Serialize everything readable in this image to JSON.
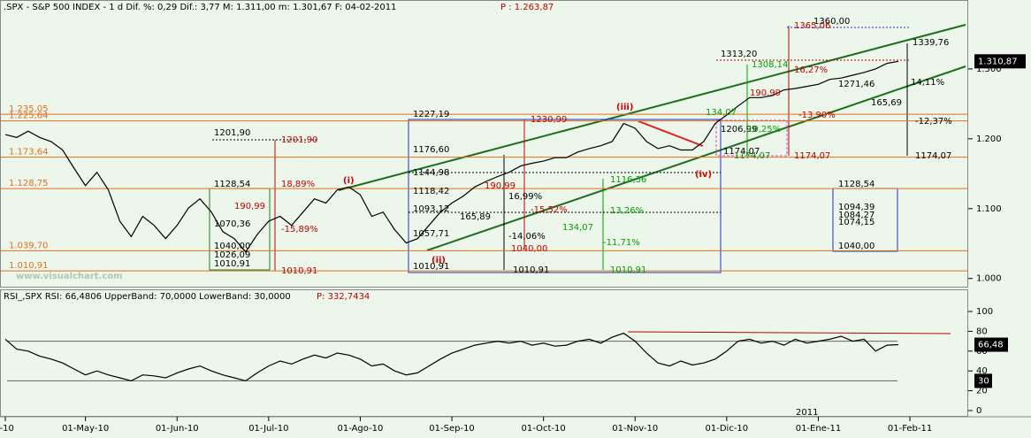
{
  "chart_data": [
    {
      "type": "line",
      "title": ".SPX - S&P 500 INDEX - 1 d Dif. %: 0,29 Dif.: 3,77 M: 1.311,00 m: 1.301,67 F: 04-02-2011",
      "title_extra": "P : 1.263,87",
      "watermark": "www.visualchart.com",
      "year_label": "2011",
      "last_label": "1.310,87",
      "categories": [
        "r-10",
        null,
        null,
        null,
        null,
        null,
        null,
        "01-May-10",
        null,
        null,
        null,
        null,
        null,
        null,
        null,
        "01-Jun-10",
        null,
        null,
        null,
        null,
        null,
        null,
        null,
        "01-Jul-10",
        null,
        null,
        null,
        null,
        null,
        null,
        null,
        "01-Ago-10",
        null,
        null,
        null,
        null,
        null,
        null,
        null,
        "01-Sep-10",
        null,
        null,
        null,
        null,
        null,
        null,
        null,
        "01-Oct-10",
        null,
        null,
        null,
        null,
        null,
        null,
        null,
        "01-Nov-10",
        null,
        null,
        null,
        null,
        null,
        null,
        null,
        "01-Dic-10",
        null,
        null,
        null,
        null,
        null,
        null,
        null,
        "01-Ene-11",
        null,
        null,
        null,
        null,
        null,
        null,
        null,
        "01-Feb-11"
      ],
      "series": [
        {
          "name": "SPX",
          "color": "#000000",
          "values": [
            1206,
            1202,
            1211,
            1202,
            1196,
            1184,
            1158,
            1133,
            1152,
            1127,
            1082,
            1060,
            1089,
            1076,
            1057,
            1076,
            1101,
            1114,
            1095,
            1067,
            1057,
            1038,
            1063,
            1082,
            1089,
            1076,
            1095,
            1114,
            1108,
            1127,
            1131,
            1120,
            1089,
            1095,
            1070,
            1051,
            1057,
            1076,
            1095,
            1108,
            1118,
            1131,
            1139,
            1146,
            1152,
            1161,
            1165,
            1168,
            1173,
            1173,
            1181,
            1186,
            1190,
            1196,
            1222,
            1215,
            1196,
            1186,
            1190,
            1184,
            1184,
            1196,
            1222,
            1234,
            1247,
            1259,
            1259,
            1262,
            1270,
            1272,
            1275,
            1278,
            1285,
            1287,
            1291,
            1295,
            1300,
            1308,
            1310.87,
            null
          ]
        }
      ],
      "ylim": [
        987,
        1386
      ],
      "yticks": [
        {
          "value": 1000,
          "label": "1.000"
        },
        {
          "value": 1100,
          "label": "1.100"
        },
        {
          "value": 1200,
          "label": "1.200"
        },
        {
          "value": 1300,
          "label": "1.300"
        }
      ],
      "levels": [
        {
          "value": 1235.05,
          "label": "1.235,05"
        },
        {
          "value": 1225.64,
          "label": "1.225,64"
        },
        {
          "value": 1173.64,
          "label": "1.173,64"
        },
        {
          "value": 1128.75,
          "label": "1.128,75"
        },
        {
          "value": 1039.7,
          "label": "1.039,70"
        },
        {
          "value": 1010.91,
          "label": "1.010,91"
        }
      ],
      "level_color": "#e07020",
      "annotations": [
        {
          "text": "1227,19",
          "color": "#000000"
        },
        {
          "text": "1201,90",
          "color": "#000000"
        },
        {
          "text": "1176,60",
          "color": "#000000"
        },
        {
          "text": "1144,98",
          "color": "#000000"
        },
        {
          "text": "1128,54",
          "color": "#000000"
        },
        {
          "text": "1118,42",
          "color": "#000000"
        },
        {
          "text": "1093,12",
          "color": "#000000"
        },
        {
          "text": "1070,36",
          "color": "#000000"
        },
        {
          "text": "1057,71",
          "color": "#000000"
        },
        {
          "text": "1040,00",
          "color": "#000000"
        },
        {
          "text": "1026,09",
          "color": "#000000"
        },
        {
          "text": "1010,91",
          "color": "#000000"
        },
        {
          "text": "1010,91",
          "color": "#000000"
        },
        {
          "text": "1010,91",
          "color": "#000000"
        },
        {
          "text": "165,89",
          "color": "#000000"
        },
        {
          "text": "-14,06%",
          "color": "#000000"
        },
        {
          "text": "1313,20",
          "color": "#000000"
        },
        {
          "text": "1360,00",
          "color": "#000000"
        },
        {
          "text": "1339,76",
          "color": "#000000"
        },
        {
          "text": "1271,46",
          "color": "#000000"
        },
        {
          "text": "165,69",
          "color": "#000000"
        },
        {
          "text": "14,11%",
          "color": "#000000"
        },
        {
          "text": "-12,37%",
          "color": "#000000"
        },
        {
          "text": "1174,07",
          "color": "#000000"
        },
        {
          "text": "1174,07",
          "color": "#000000"
        },
        {
          "text": "1128,54",
          "color": "#000000"
        },
        {
          "text": "1094,39",
          "color": "#000000"
        },
        {
          "text": "1084,27",
          "color": "#000000"
        },
        {
          "text": "1074,15",
          "color": "#000000"
        },
        {
          "text": "1040,00",
          "color": "#000000"
        },
        {
          "text": "16,99%",
          "color": "#000000"
        },
        {
          "text": "1206,99",
          "color": "#000000"
        },
        {
          "text": "1201,90",
          "color": "#c00000"
        },
        {
          "text": "190,99",
          "color": "#c00000"
        },
        {
          "text": "-15,89%",
          "color": "#c00000"
        },
        {
          "text": "1010,91",
          "color": "#c00000"
        },
        {
          "text": "18,89%",
          "color": "#c00000"
        },
        {
          "text": "1230,99",
          "color": "#c00000"
        },
        {
          "text": "-15,52%",
          "color": "#c00000"
        },
        {
          "text": "1040,00",
          "color": "#c00000"
        },
        {
          "text": "1365,06",
          "color": "#c00000"
        },
        {
          "text": "16,27%",
          "color": "#c00000"
        },
        {
          "text": "190,99",
          "color": "#c00000"
        },
        {
          "text": "-13,90%",
          "color": "#c00000"
        },
        {
          "text": "1174,07",
          "color": "#c00000"
        },
        {
          "text": "190,99",
          "color": "#c00000"
        },
        {
          "text": "1308,14",
          "color": "#00a000"
        },
        {
          "text": "134,07",
          "color": "#00a000"
        },
        {
          "text": "1174,07",
          "color": "#00a000"
        },
        {
          "text": "1116,36",
          "color": "#00a000"
        },
        {
          "text": "13,26%",
          "color": "#00a000"
        },
        {
          "text": "134,07",
          "color": "#00a000"
        },
        {
          "text": "-11,71%",
          "color": "#00a000"
        },
        {
          "text": "1010,91",
          "color": "#00a000"
        },
        {
          "text": "10,25%",
          "color": "#00a000"
        }
      ],
      "waves": [
        "(i)",
        "(ii)",
        "(iii)",
        "(iv)"
      ]
    },
    {
      "type": "line",
      "title": "RSI_,SPX RSI: 66,4806 UpperBand: 70,0000 LowerBand: 30,0000",
      "title_extra": "P: 332,7434",
      "upper_band": 70,
      "lower_band": 30,
      "upper_label": "66,48",
      "lower_label": "30",
      "series": [
        {
          "name": "RSI",
          "color": "#000000",
          "values": [
            72,
            62,
            60,
            55,
            52,
            48,
            42,
            36,
            40,
            36,
            33,
            30,
            36,
            35,
            33,
            38,
            42,
            45,
            40,
            36,
            33,
            30,
            38,
            45,
            50,
            47,
            52,
            56,
            53,
            58,
            56,
            52,
            45,
            47,
            40,
            36,
            38,
            45,
            52,
            58,
            62,
            66,
            68,
            70,
            68,
            70,
            66,
            68,
            65,
            66,
            70,
            72,
            68,
            74,
            78,
            70,
            58,
            48,
            45,
            50,
            46,
            48,
            52,
            60,
            70,
            72,
            68,
            70,
            66,
            72,
            68,
            70,
            72,
            75,
            70,
            72,
            60,
            66,
            66.48,
            null
          ]
        }
      ],
      "ylim": [
        0,
        100
      ],
      "yticks": [
        0,
        20,
        40,
        60,
        80,
        100
      ]
    }
  ]
}
